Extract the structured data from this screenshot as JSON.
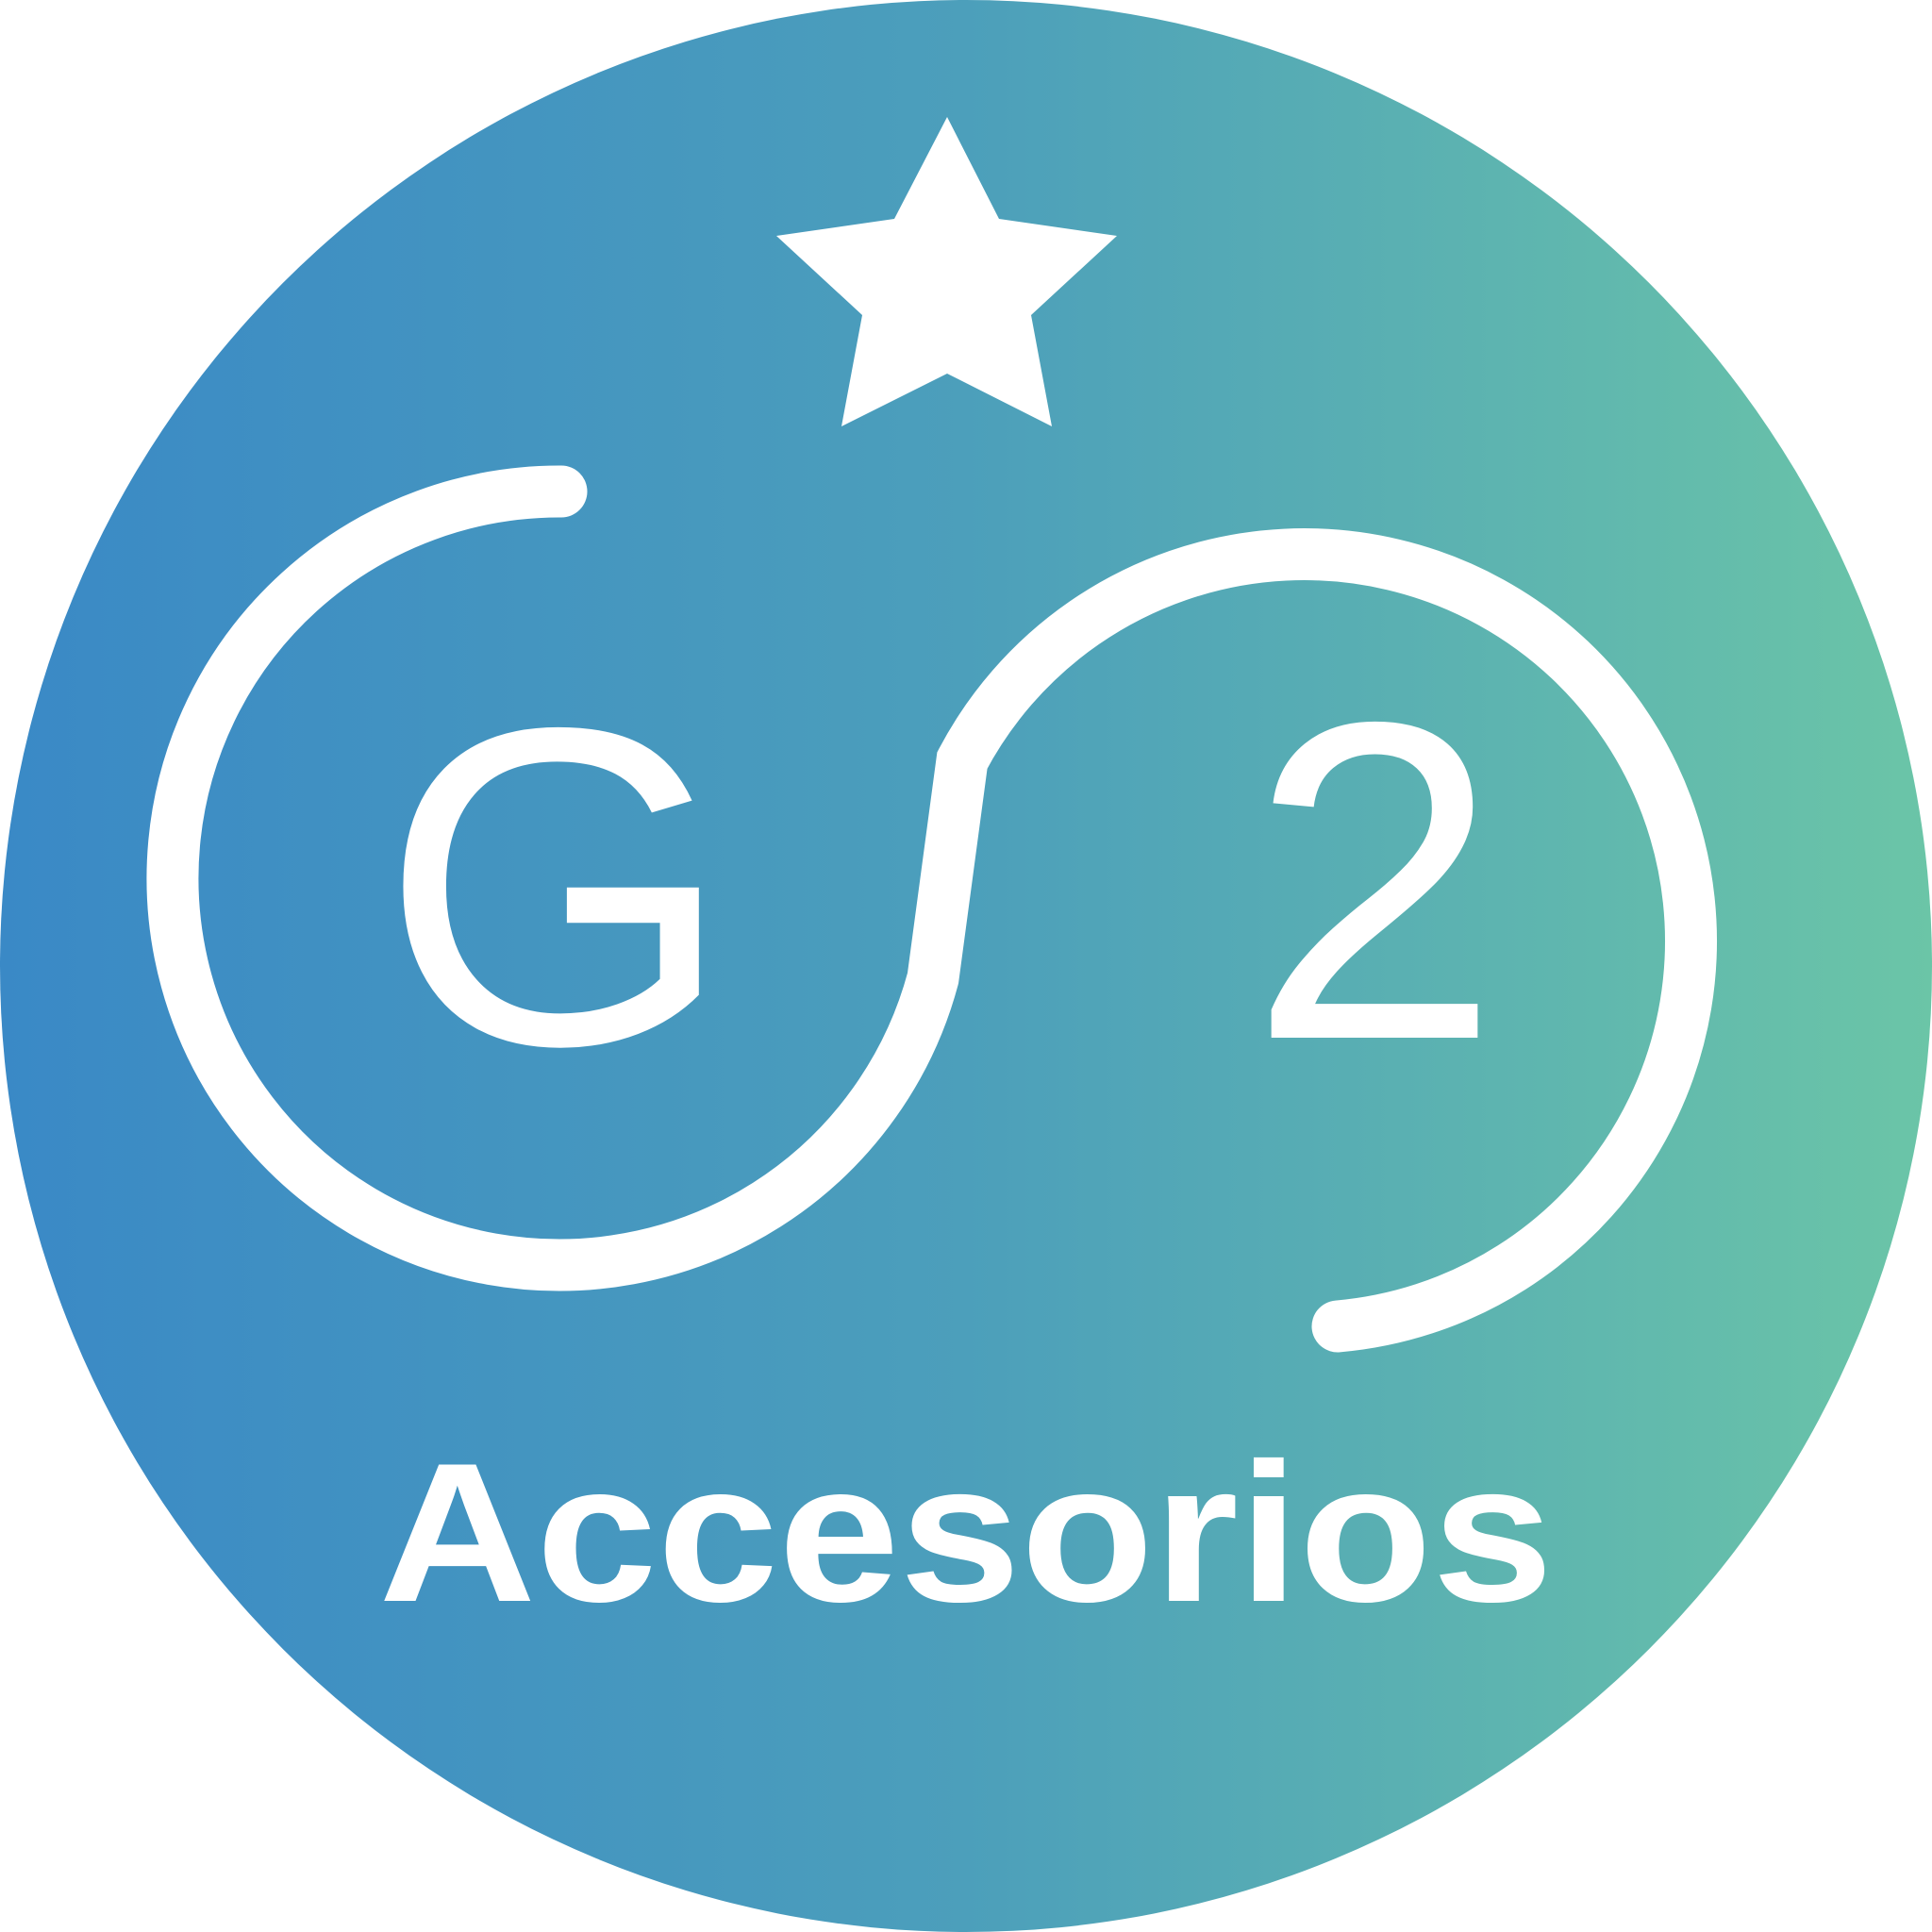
{
  "logo": {
    "letter": "G",
    "digit": "2",
    "tagline": "Accesorios"
  },
  "colors": {
    "gradient_start": "#3a89c6",
    "gradient_mid": "#4c9fbb",
    "gradient_end": "#6bc5a7",
    "foreground": "#ffffff"
  },
  "icons": {
    "top": "star-icon"
  }
}
